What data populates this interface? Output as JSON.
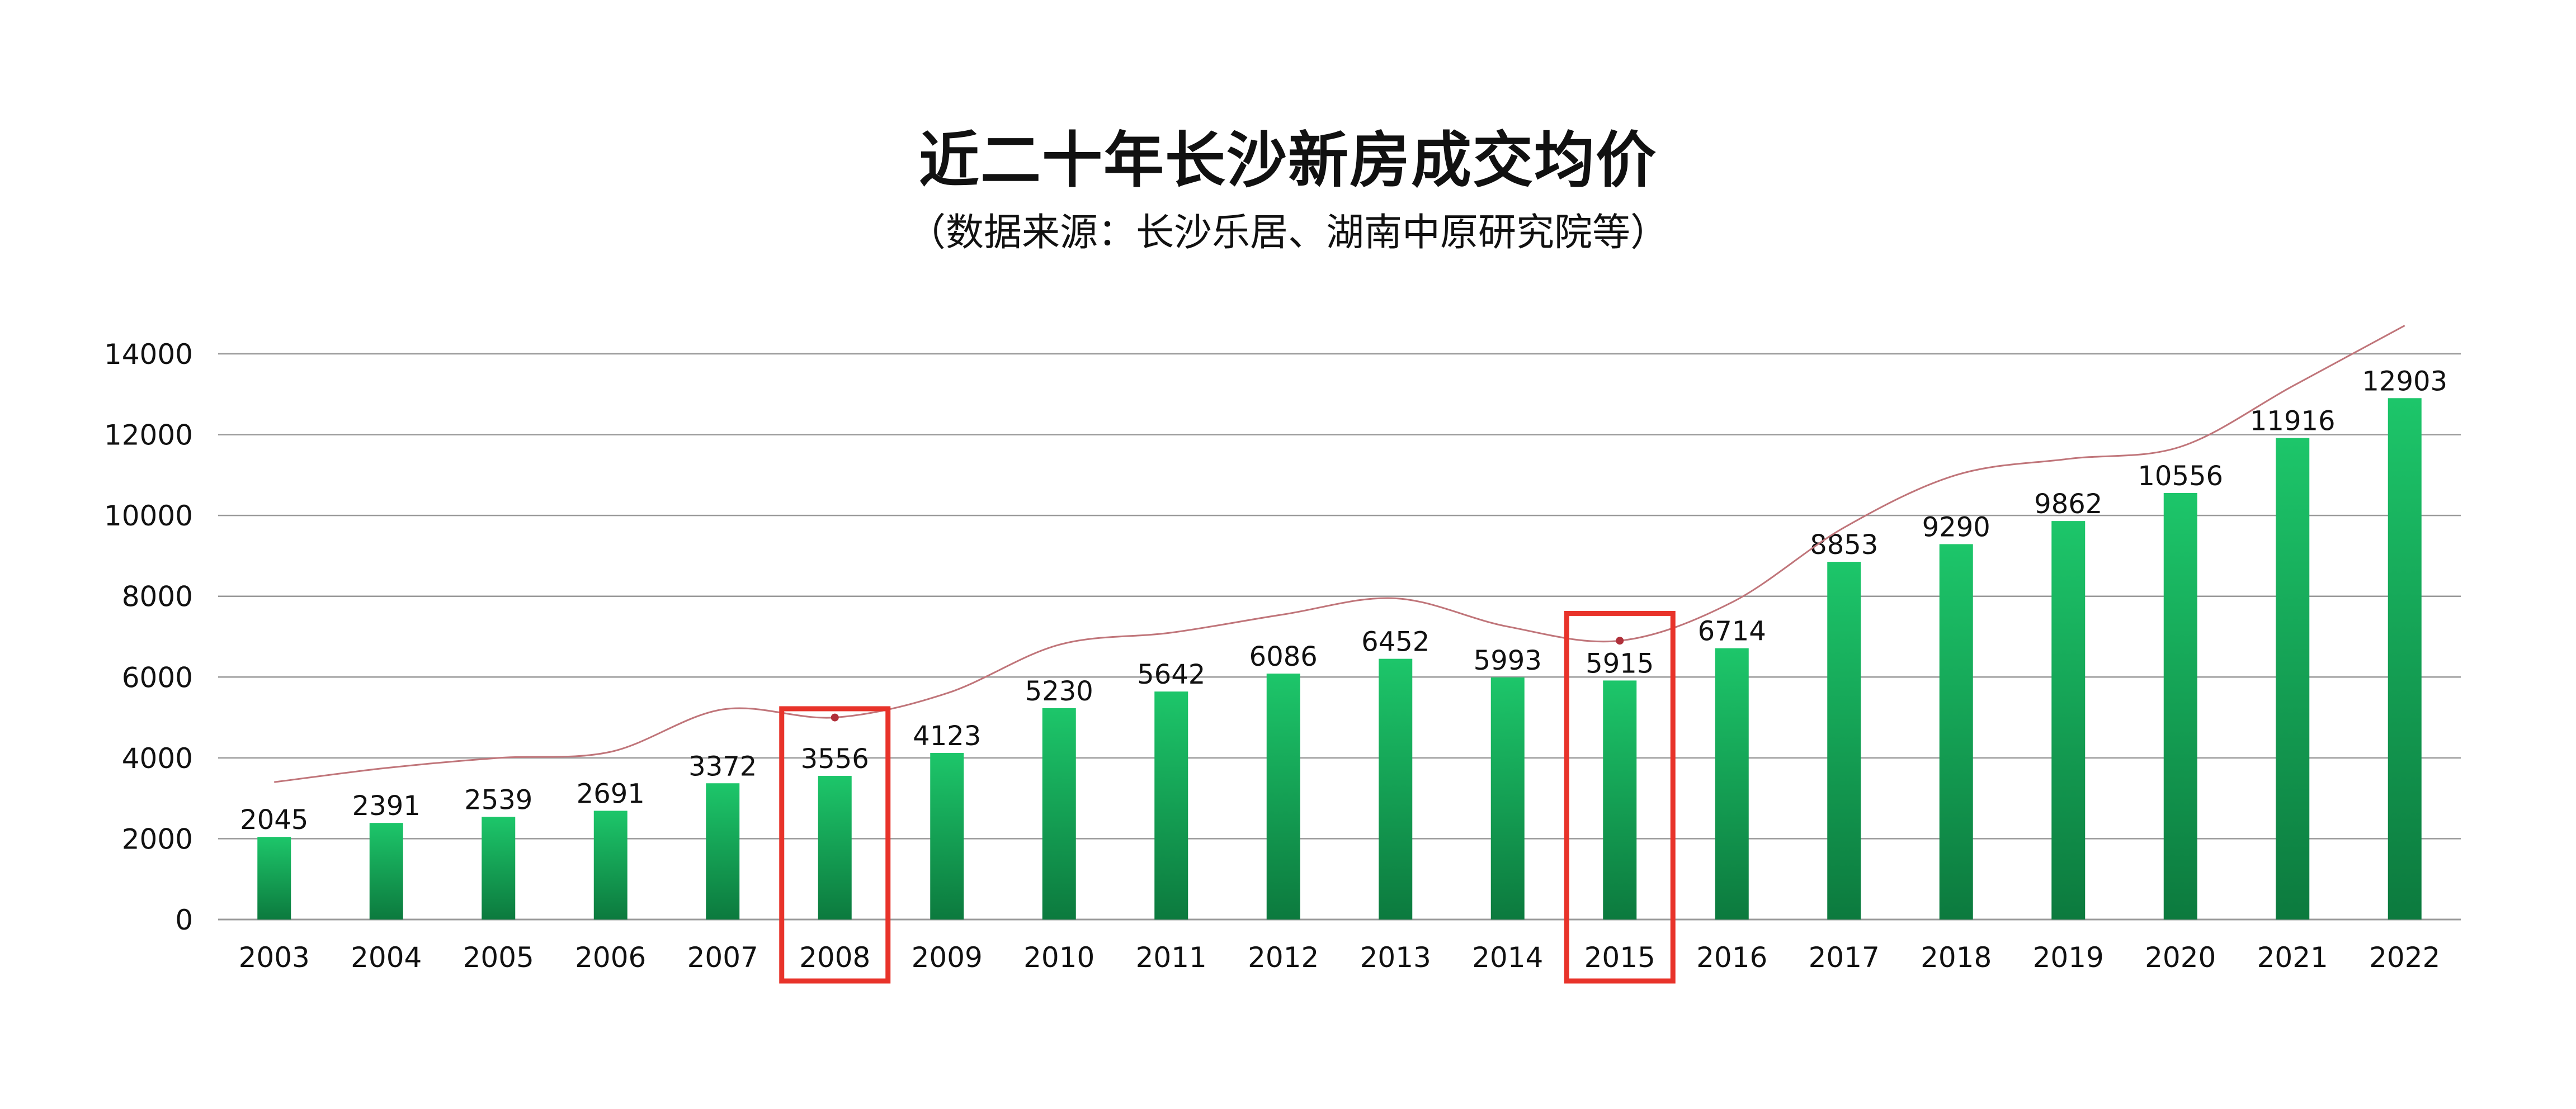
{
  "chart_data": {
    "type": "bar",
    "title": "近二十年长沙新房成交均价",
    "subtitle": "（数据来源：长沙乐居、湖南中原研究院等）",
    "categories": [
      "2003",
      "2004",
      "2005",
      "2006",
      "2007",
      "2008",
      "2009",
      "2010",
      "2011",
      "2012",
      "2013",
      "2014",
      "2015",
      "2016",
      "2017",
      "2018",
      "2019",
      "2020",
      "2021",
      "2022"
    ],
    "series": [
      {
        "values": [
          2045,
          2391,
          2539,
          2691,
          3372,
          3556,
          4123,
          5230,
          5642,
          6086,
          6452,
          5993,
          5915,
          6714,
          8853,
          9290,
          9862,
          10556,
          11916,
          12903
        ]
      }
    ],
    "trend_line": [
      3400,
      3750,
      4000,
      4150,
      5200,
      5000,
      5600,
      6800,
      7100,
      7550,
      7950,
      7250,
      6900,
      7850,
      9700,
      11000,
      11400,
      11700,
      13200,
      14700
    ],
    "highlighted_categories": [
      "2008",
      "2015"
    ],
    "ylim": [
      0,
      14000
    ],
    "yticks": [
      0,
      2000,
      4000,
      6000,
      8000,
      10000,
      12000,
      14000
    ],
    "grid": true,
    "legend": "none",
    "colors": {
      "bar_top": "#1DC66A",
      "bar_bottom": "#0C7A3E",
      "trend_line": "#C0757A",
      "highlight_box": "#E8332A",
      "grid": "#9A9A9A",
      "axis": "#9A9A9A"
    }
  }
}
